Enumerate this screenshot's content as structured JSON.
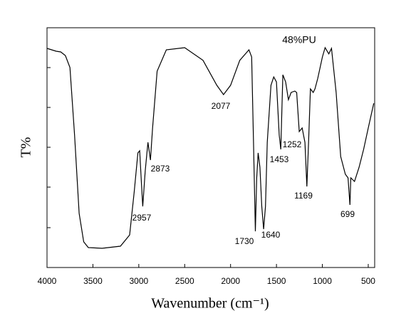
{
  "chart_data": {
    "type": "line",
    "title": "48%PU",
    "x_label": "Wavenumber (cm⁻¹)",
    "y_label": "T%",
    "xlim": [
      4000,
      430
    ],
    "xticks": [
      4000,
      3500,
      3000,
      2500,
      2000,
      1500,
      1000,
      500
    ],
    "ylim": [
      0,
      100
    ],
    "annotations": [
      "2957",
      "2873",
      "2077",
      "1730",
      "1640",
      "1453",
      "1252",
      "1169",
      "699"
    ],
    "x": [
      4000,
      3900,
      3850,
      3800,
      3750,
      3700,
      3650,
      3600,
      3550,
      3400,
      3200,
      3100,
      3050,
      3010,
      2990,
      2970,
      2957,
      2930,
      2900,
      2873,
      2850,
      2800,
      2700,
      2500,
      2300,
      2150,
      2077,
      2000,
      1900,
      1800,
      1770,
      1750,
      1730,
      1715,
      1700,
      1680,
      1660,
      1640,
      1620,
      1600,
      1560,
      1530,
      1500,
      1470,
      1453,
      1430,
      1400,
      1370,
      1340,
      1300,
      1280,
      1252,
      1220,
      1190,
      1169,
      1150,
      1130,
      1100,
      1080,
      1050,
      1000,
      970,
      930,
      900,
      850,
      800,
      750,
      720,
      699,
      690,
      650,
      600,
      550,
      500,
      440
    ],
    "series": [
      {
        "color": "#000000",
        "values": [
          91.4,
          90.2,
          89.9,
          88.4,
          83.4,
          55.2,
          22.6,
          10.7,
          8.3,
          8.0,
          8.9,
          13.6,
          31.5,
          47.8,
          48.7,
          34.4,
          25.5,
          40.4,
          52.2,
          44.8,
          58.2,
          81.9,
          90.8,
          91.7,
          86.4,
          76.0,
          72.1,
          76.0,
          86.4,
          90.8,
          87.8,
          52.2,
          15.1,
          37.4,
          47.8,
          41.8,
          25.5,
          16.0,
          25.5,
          52.2,
          76.0,
          79.5,
          77.4,
          55.2,
          49.3,
          80.4,
          77.4,
          70.0,
          73.0,
          73.6,
          73.0,
          56.7,
          58.2,
          52.2,
          33.8,
          52.2,
          74.5,
          73.0,
          74.5,
          78.9,
          87.8,
          91.7,
          89.1,
          91.4,
          73.0,
          46.3,
          38.9,
          37.4,
          26.1,
          37.4,
          35.9,
          41.8,
          49.3,
          58.2,
          68.5
        ]
      }
    ]
  }
}
